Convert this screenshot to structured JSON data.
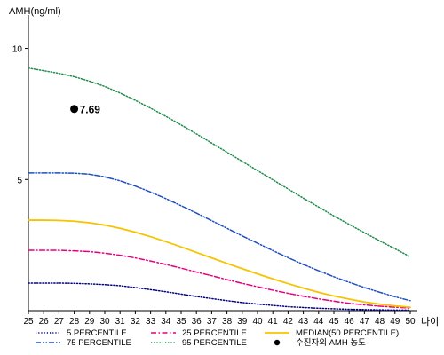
{
  "chart_data": {
    "type": "line",
    "ylabel": "AMH(ng/ml)",
    "xlabel": "나이",
    "x": [
      25,
      26,
      27,
      28,
      29,
      30,
      31,
      32,
      33,
      34,
      35,
      36,
      37,
      38,
      39,
      40,
      41,
      42,
      43,
      44,
      45,
      46,
      47,
      48,
      49,
      50
    ],
    "xlim": [
      25,
      50
    ],
    "ylim": [
      0,
      11
    ],
    "yticks": [
      5,
      10
    ],
    "grid": false,
    "legend_position": "bottom",
    "series": [
      {
        "name": "5 PERCENTILE",
        "color": "#000080",
        "dash": "dotted",
        "values": [
          1.05,
          1.05,
          1.05,
          1.04,
          1.02,
          0.99,
          0.95,
          0.88,
          0.8,
          0.72,
          0.63,
          0.54,
          0.46,
          0.38,
          0.31,
          0.25,
          0.2,
          0.15,
          0.12,
          0.09,
          0.07,
          0.05,
          0.04,
          0.03,
          0.02,
          0.02
        ]
      },
      {
        "name": "25 PERCENTILE",
        "color": "#e6007e",
        "dash": "dashdot",
        "values": [
          2.3,
          2.3,
          2.3,
          2.28,
          2.25,
          2.19,
          2.11,
          2.01,
          1.89,
          1.76,
          1.62,
          1.47,
          1.33,
          1.18,
          1.04,
          0.91,
          0.78,
          0.66,
          0.55,
          0.45,
          0.36,
          0.28,
          0.22,
          0.17,
          0.13,
          0.1
        ]
      },
      {
        "name": "MEDIAN(50 PERCENTILE)",
        "color": "#f5c400",
        "dash": "solid",
        "values": [
          3.45,
          3.45,
          3.44,
          3.41,
          3.35,
          3.26,
          3.14,
          2.99,
          2.82,
          2.63,
          2.43,
          2.22,
          2.01,
          1.8,
          1.6,
          1.4,
          1.21,
          1.03,
          0.86,
          0.7,
          0.56,
          0.44,
          0.33,
          0.25,
          0.18,
          0.13
        ]
      },
      {
        "name": "75 PERCENTILE",
        "color": "#1f4fbf",
        "dash": "dashdotdot",
        "values": [
          5.25,
          5.25,
          5.25,
          5.24,
          5.2,
          5.1,
          4.95,
          4.75,
          4.52,
          4.27,
          4.0,
          3.72,
          3.43,
          3.14,
          2.85,
          2.57,
          2.29,
          2.02,
          1.76,
          1.52,
          1.29,
          1.08,
          0.88,
          0.7,
          0.53,
          0.38
        ]
      },
      {
        "name": "95 PERCENTILE",
        "color": "#1e8c4a",
        "dash": "dotted",
        "values": [
          9.25,
          9.15,
          9.05,
          8.92,
          8.75,
          8.55,
          8.3,
          8.02,
          7.72,
          7.41,
          7.08,
          6.74,
          6.39,
          6.04,
          5.69,
          5.34,
          4.99,
          4.64,
          4.29,
          3.95,
          3.61,
          3.29,
          2.97,
          2.66,
          2.36,
          2.05
        ]
      }
    ],
    "points": [
      {
        "name": "수진자의 AMH 농도",
        "x": 28,
        "y": 7.69,
        "label": "7.69",
        "color": "#000000"
      }
    ]
  }
}
